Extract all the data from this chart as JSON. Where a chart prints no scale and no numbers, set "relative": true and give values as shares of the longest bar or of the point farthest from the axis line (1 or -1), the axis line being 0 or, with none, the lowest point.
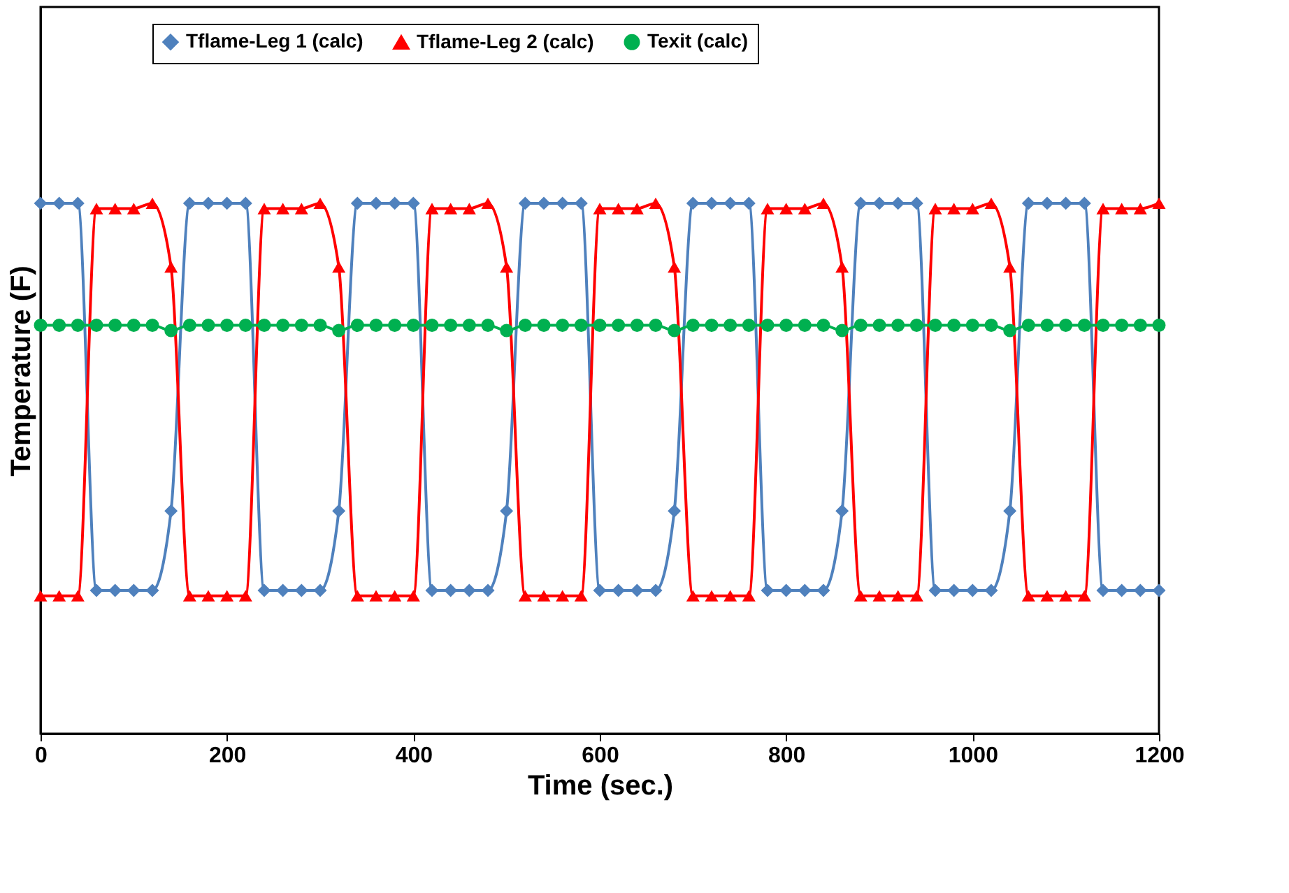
{
  "chart_data": {
    "type": "line",
    "xlabel": "Time (sec.)",
    "ylabel": "Temperature (F)",
    "relative": true,
    "grid": false,
    "legend": "top",
    "xlim": [
      0,
      1200
    ],
    "xticks": [
      0,
      200,
      400,
      600,
      800,
      1000,
      1200
    ],
    "x": [
      0,
      20,
      40,
      60,
      80,
      100,
      120,
      140,
      160,
      180,
      200,
      220,
      240,
      260,
      280,
      300,
      320,
      340,
      360,
      380,
      400,
      420,
      440,
      460,
      480,
      500,
      520,
      540,
      560,
      580,
      600,
      620,
      640,
      660,
      680,
      700,
      720,
      740,
      760,
      780,
      800,
      820,
      840,
      860,
      880,
      900,
      920,
      940,
      960,
      980,
      1000,
      1020,
      1040,
      1060,
      1080,
      1100,
      1120,
      1140,
      1160,
      1180,
      1200
    ],
    "series": [
      {
        "name": "Tflame-Leg 1 (calc)",
        "color": "#4f81bd",
        "marker": "diamond",
        "values": [
          1,
          1,
          1,
          0.27,
          0.27,
          0.27,
          0.27,
          0.42,
          1,
          1,
          1,
          1,
          0.27,
          0.27,
          0.27,
          0.27,
          0.42,
          1,
          1,
          1,
          1,
          0.27,
          0.27,
          0.27,
          0.27,
          0.42,
          1,
          1,
          1,
          1,
          0.27,
          0.27,
          0.27,
          0.27,
          0.42,
          1,
          1,
          1,
          1,
          0.27,
          0.27,
          0.27,
          0.27,
          0.42,
          1,
          1,
          1,
          1,
          0.27,
          0.27,
          0.27,
          0.27,
          0.42,
          1,
          1,
          1,
          1,
          0.27,
          0.27,
          0.27,
          0.27
        ]
      },
      {
        "name": "Tflame-Leg 2 (calc)",
        "color": "#ff0000",
        "marker": "triangle",
        "values": [
          0.26,
          0.26,
          0.26,
          0.99,
          0.99,
          0.99,
          1,
          0.88,
          0.26,
          0.26,
          0.26,
          0.26,
          0.99,
          0.99,
          0.99,
          1,
          0.88,
          0.26,
          0.26,
          0.26,
          0.26,
          0.99,
          0.99,
          0.99,
          1,
          0.88,
          0.26,
          0.26,
          0.26,
          0.26,
          0.99,
          0.99,
          0.99,
          1,
          0.88,
          0.26,
          0.26,
          0.26,
          0.26,
          0.99,
          0.99,
          0.99,
          1,
          0.88,
          0.26,
          0.26,
          0.26,
          0.26,
          0.99,
          0.99,
          0.99,
          1,
          0.88,
          0.26,
          0.26,
          0.26,
          0.26,
          0.99,
          0.99,
          0.99,
          1
        ]
      },
      {
        "name": "Texit (calc)",
        "color": "#00b050",
        "marker": "circle",
        "values": [
          0.77,
          0.77,
          0.77,
          0.77,
          0.77,
          0.77,
          0.77,
          0.76,
          0.77,
          0.77,
          0.77,
          0.77,
          0.77,
          0.77,
          0.77,
          0.77,
          0.76,
          0.77,
          0.77,
          0.77,
          0.77,
          0.77,
          0.77,
          0.77,
          0.77,
          0.76,
          0.77,
          0.77,
          0.77,
          0.77,
          0.77,
          0.77,
          0.77,
          0.77,
          0.76,
          0.77,
          0.77,
          0.77,
          0.77,
          0.77,
          0.77,
          0.77,
          0.77,
          0.76,
          0.77,
          0.77,
          0.77,
          0.77,
          0.77,
          0.77,
          0.77,
          0.77,
          0.76,
          0.77,
          0.77,
          0.77,
          0.77,
          0.77,
          0.77,
          0.77,
          0.77
        ]
      }
    ]
  }
}
